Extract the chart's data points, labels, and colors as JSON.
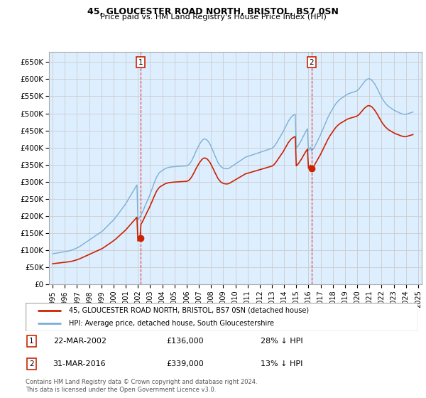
{
  "title": "45, GLOUCESTER ROAD NORTH, BRISTOL, BS7 0SN",
  "subtitle": "Price paid vs. HM Land Registry's House Price Index (HPI)",
  "ylim": [
    0,
    680000
  ],
  "yticks": [
    0,
    50000,
    100000,
    150000,
    200000,
    250000,
    300000,
    350000,
    400000,
    450000,
    500000,
    550000,
    600000,
    650000
  ],
  "ytick_labels": [
    "£0",
    "£50K",
    "£100K",
    "£150K",
    "£200K",
    "£250K",
    "£300K",
    "£350K",
    "£400K",
    "£450K",
    "£500K",
    "£550K",
    "£600K",
    "£650K"
  ],
  "xlim_start": 1994.7,
  "xlim_end": 2025.3,
  "hpi_color": "#7ab0d4",
  "hpi_fill_color": "#ddeeff",
  "sale_color": "#cc2200",
  "vline_color": "#dd3333",
  "annotation_box_color": "#cc2200",
  "grid_color": "#cccccc",
  "background_color": "#eef4fa",
  "legend_label_sale": "45, GLOUCESTER ROAD NORTH, BRISTOL, BS7 0SN (detached house)",
  "legend_label_hpi": "HPI: Average price, detached house, South Gloucestershire",
  "sale1_date": 2002.22,
  "sale1_price": 136000,
  "sale2_date": 2016.25,
  "sale2_price": 339000,
  "footer": "Contains HM Land Registry data © Crown copyright and database right 2024.\nThis data is licensed under the Open Government Licence v3.0.",
  "hpi_dates": [
    1995.0,
    1995.08,
    1995.17,
    1995.25,
    1995.33,
    1995.42,
    1995.5,
    1995.58,
    1995.67,
    1995.75,
    1995.83,
    1995.92,
    1996.0,
    1996.08,
    1996.17,
    1996.25,
    1996.33,
    1996.42,
    1996.5,
    1996.58,
    1996.67,
    1996.75,
    1996.83,
    1996.92,
    1997.0,
    1997.08,
    1997.17,
    1997.25,
    1997.33,
    1997.42,
    1997.5,
    1997.58,
    1997.67,
    1997.75,
    1997.83,
    1997.92,
    1998.0,
    1998.08,
    1998.17,
    1998.25,
    1998.33,
    1998.42,
    1998.5,
    1998.58,
    1998.67,
    1998.75,
    1998.83,
    1998.92,
    1999.0,
    1999.08,
    1999.17,
    1999.25,
    1999.33,
    1999.42,
    1999.5,
    1999.58,
    1999.67,
    1999.75,
    1999.83,
    1999.92,
    2000.0,
    2000.08,
    2000.17,
    2000.25,
    2000.33,
    2000.42,
    2000.5,
    2000.58,
    2000.67,
    2000.75,
    2000.83,
    2000.92,
    2001.0,
    2001.08,
    2001.17,
    2001.25,
    2001.33,
    2001.42,
    2001.5,
    2001.58,
    2001.67,
    2001.75,
    2001.83,
    2001.92,
    2002.0,
    2002.08,
    2002.17,
    2002.25,
    2002.33,
    2002.42,
    2002.5,
    2002.58,
    2002.67,
    2002.75,
    2002.83,
    2002.92,
    2003.0,
    2003.08,
    2003.17,
    2003.25,
    2003.33,
    2003.42,
    2003.5,
    2003.58,
    2003.67,
    2003.75,
    2003.83,
    2003.92,
    2004.0,
    2004.08,
    2004.17,
    2004.25,
    2004.33,
    2004.42,
    2004.5,
    2004.58,
    2004.67,
    2004.75,
    2004.83,
    2004.92,
    2005.0,
    2005.08,
    2005.17,
    2005.25,
    2005.33,
    2005.42,
    2005.5,
    2005.58,
    2005.67,
    2005.75,
    2005.83,
    2005.92,
    2006.0,
    2006.08,
    2006.17,
    2006.25,
    2006.33,
    2006.42,
    2006.5,
    2006.58,
    2006.67,
    2006.75,
    2006.83,
    2006.92,
    2007.0,
    2007.08,
    2007.17,
    2007.25,
    2007.33,
    2007.42,
    2007.5,
    2007.58,
    2007.67,
    2007.75,
    2007.83,
    2007.92,
    2008.0,
    2008.08,
    2008.17,
    2008.25,
    2008.33,
    2008.42,
    2008.5,
    2008.58,
    2008.67,
    2008.75,
    2008.83,
    2008.92,
    2009.0,
    2009.08,
    2009.17,
    2009.25,
    2009.33,
    2009.42,
    2009.5,
    2009.58,
    2009.67,
    2009.75,
    2009.83,
    2009.92,
    2010.0,
    2010.08,
    2010.17,
    2010.25,
    2010.33,
    2010.42,
    2010.5,
    2010.58,
    2010.67,
    2010.75,
    2010.83,
    2010.92,
    2011.0,
    2011.08,
    2011.17,
    2011.25,
    2011.33,
    2011.42,
    2011.5,
    2011.58,
    2011.67,
    2011.75,
    2011.83,
    2011.92,
    2012.0,
    2012.08,
    2012.17,
    2012.25,
    2012.33,
    2012.42,
    2012.5,
    2012.58,
    2012.67,
    2012.75,
    2012.83,
    2012.92,
    2013.0,
    2013.08,
    2013.17,
    2013.25,
    2013.33,
    2013.42,
    2013.5,
    2013.58,
    2013.67,
    2013.75,
    2013.83,
    2013.92,
    2014.0,
    2014.08,
    2014.17,
    2014.25,
    2014.33,
    2014.42,
    2014.5,
    2014.58,
    2014.67,
    2014.75,
    2014.83,
    2014.92,
    2015.0,
    2015.08,
    2015.17,
    2015.25,
    2015.33,
    2015.42,
    2015.5,
    2015.58,
    2015.67,
    2015.75,
    2015.83,
    2015.92,
    2016.0,
    2016.08,
    2016.17,
    2016.25,
    2016.33,
    2016.42,
    2016.5,
    2016.58,
    2016.67,
    2016.75,
    2016.83,
    2016.92,
    2017.0,
    2017.08,
    2017.17,
    2017.25,
    2017.33,
    2017.42,
    2017.5,
    2017.58,
    2017.67,
    2017.75,
    2017.83,
    2017.92,
    2018.0,
    2018.08,
    2018.17,
    2018.25,
    2018.33,
    2018.42,
    2018.5,
    2018.58,
    2018.67,
    2018.75,
    2018.83,
    2018.92,
    2019.0,
    2019.08,
    2019.17,
    2019.25,
    2019.33,
    2019.42,
    2019.5,
    2019.58,
    2019.67,
    2019.75,
    2019.83,
    2019.92,
    2020.0,
    2020.08,
    2020.17,
    2020.25,
    2020.33,
    2020.42,
    2020.5,
    2020.58,
    2020.67,
    2020.75,
    2020.83,
    2020.92,
    2021.0,
    2021.08,
    2021.17,
    2021.25,
    2021.33,
    2021.42,
    2021.5,
    2021.58,
    2021.67,
    2021.75,
    2021.83,
    2021.92,
    2022.0,
    2022.08,
    2022.17,
    2022.25,
    2022.33,
    2022.42,
    2022.5,
    2022.58,
    2022.67,
    2022.75,
    2022.83,
    2022.92,
    2023.0,
    2023.08,
    2023.17,
    2023.25,
    2023.33,
    2023.42,
    2023.5,
    2023.58,
    2023.67,
    2023.75,
    2023.83,
    2023.92,
    2024.0,
    2024.08,
    2024.17,
    2024.25,
    2024.33,
    2024.42,
    2024.5,
    2024.58
  ],
  "hpi_values": [
    90000,
    90500,
    91000,
    91500,
    92000,
    92500,
    93000,
    93500,
    94000,
    94500,
    95000,
    95500,
    96000,
    96500,
    97000,
    97500,
    98000,
    99000,
    100000,
    101000,
    102000,
    103000,
    104500,
    106000,
    107000,
    108500,
    110000,
    112000,
    114000,
    116000,
    118000,
    120000,
    122000,
    124000,
    126000,
    128000,
    130000,
    132000,
    134000,
    136000,
    138000,
    140000,
    142000,
    144000,
    146000,
    148000,
    150000,
    152000,
    154000,
    156000,
    159000,
    162000,
    165000,
    168000,
    171000,
    174000,
    177000,
    180000,
    183000,
    186000,
    189000,
    192000,
    196000,
    200000,
    204000,
    208000,
    212000,
    216000,
    220000,
    224000,
    228000,
    232000,
    236000,
    241000,
    246000,
    251000,
    256000,
    261000,
    266000,
    271000,
    276000,
    281000,
    286000,
    291000,
    188000,
    193000,
    198000,
    203000,
    208000,
    215000,
    222000,
    229000,
    236000,
    243000,
    250000,
    257000,
    264000,
    272000,
    280000,
    288000,
    296000,
    304000,
    311000,
    317000,
    322000,
    326000,
    329000,
    331000,
    333000,
    335000,
    337000,
    339000,
    340000,
    341000,
    342000,
    342500,
    343000,
    343500,
    343800,
    344000,
    344200,
    344500,
    344800,
    345000,
    345200,
    345500,
    345700,
    345900,
    346000,
    346200,
    346400,
    346500,
    347000,
    348000,
    350000,
    353000,
    357000,
    362000,
    368000,
    374000,
    381000,
    388000,
    394000,
    400000,
    406000,
    411000,
    416000,
    420000,
    423000,
    425000,
    425500,
    424000,
    422000,
    419000,
    415000,
    410000,
    404000,
    397000,
    390000,
    383000,
    376000,
    369000,
    362000,
    356000,
    351000,
    347000,
    344000,
    342000,
    340000,
    339000,
    338500,
    338000,
    338200,
    339000,
    340000,
    342000,
    344000,
    346000,
    348000,
    350000,
    352000,
    354000,
    356000,
    358000,
    360000,
    362000,
    364000,
    366000,
    368000,
    370000,
    372000,
    373000,
    374000,
    375000,
    376000,
    377000,
    378000,
    379000,
    380000,
    381000,
    382000,
    383000,
    384000,
    385000,
    386000,
    387000,
    388000,
    389000,
    390000,
    391000,
    392000,
    393000,
    394000,
    395000,
    396000,
    397000,
    398000,
    400000,
    403000,
    407000,
    411000,
    416000,
    421000,
    426000,
    431000,
    436000,
    441000,
    446000,
    452000,
    458000,
    464000,
    470000,
    476000,
    481000,
    485000,
    489000,
    492000,
    494000,
    496000,
    497000,
    399000,
    402000,
    406000,
    411000,
    416000,
    421000,
    427000,
    433000,
    439000,
    445000,
    450000,
    455000,
    391000,
    396000,
    401000,
    390000,
    393000,
    397000,
    402000,
    408000,
    414000,
    420000,
    426000,
    432000,
    438000,
    445000,
    452000,
    459000,
    466000,
    473000,
    480000,
    487000,
    493000,
    499000,
    504000,
    509000,
    514000,
    519000,
    524000,
    528000,
    532000,
    535000,
    538000,
    541000,
    543000,
    545000,
    547000,
    549000,
    551000,
    553000,
    555000,
    557000,
    558000,
    559000,
    560000,
    561000,
    562000,
    563000,
    564000,
    565000,
    567000,
    569000,
    572000,
    576000,
    580000,
    584000,
    588000,
    592000,
    595000,
    598000,
    600000,
    601000,
    601000,
    600000,
    598000,
    595000,
    591000,
    587000,
    582000,
    577000,
    571000,
    565000,
    559000,
    553000,
    547000,
    542000,
    537000,
    533000,
    529000,
    526000,
    523000,
    520000,
    518000,
    516000,
    514000,
    512000,
    510000,
    508000,
    507000,
    505000,
    504000,
    503000,
    501000,
    500000,
    499000,
    498000,
    497000,
    497000,
    497000,
    498000,
    499000,
    500000,
    501000,
    502000,
    503000,
    504000,
    505000,
    506000,
    507000,
    508000,
    509000,
    510000,
    512000,
    514000,
    516000,
    518000,
    480000,
    478000
  ],
  "xticks": [
    1995,
    1996,
    1997,
    1998,
    1999,
    2000,
    2001,
    2002,
    2003,
    2004,
    2005,
    2006,
    2007,
    2008,
    2009,
    2010,
    2011,
    2012,
    2013,
    2014,
    2015,
    2016,
    2017,
    2018,
    2019,
    2020,
    2021,
    2022,
    2023,
    2024,
    2025
  ]
}
